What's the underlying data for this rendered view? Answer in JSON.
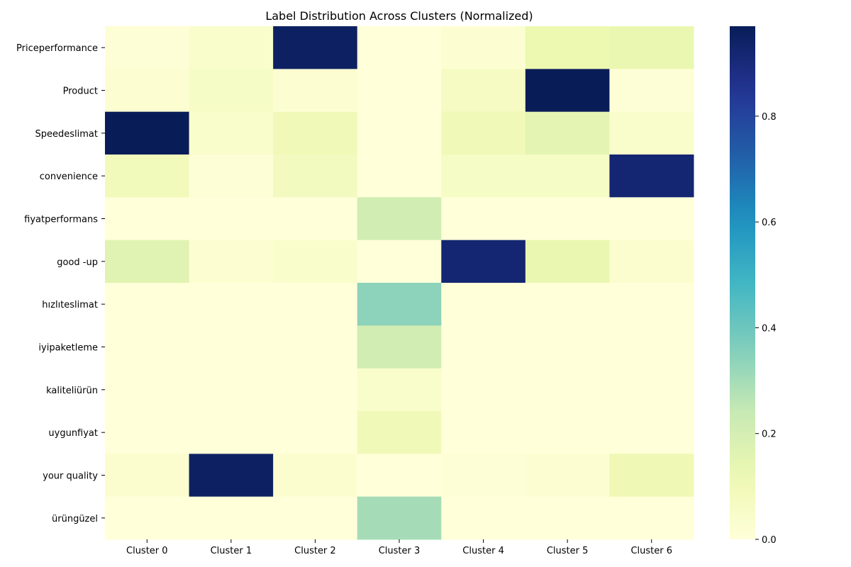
{
  "chart_data": {
    "type": "heatmap",
    "title": "Label Distribution Across Clusters (Normalized)",
    "xlabel": "",
    "ylabel": "",
    "columns": [
      "Cluster 0",
      "Cluster 1",
      "Cluster 2",
      "Cluster 3",
      "Cluster 4",
      "Cluster 5",
      "Cluster 6"
    ],
    "rows": [
      "Priceperformance",
      "Product",
      "Speedeslimat",
      "convenience",
      "fiyatperformans",
      "good -up",
      "hızlıteslimat",
      "iyipaketleme",
      "kaliteliürün",
      "uygunfiyat",
      "your quality",
      "ürüngüzel"
    ],
    "values": [
      [
        0.01,
        0.04,
        0.95,
        0.0,
        0.02,
        0.12,
        0.13
      ],
      [
        0.02,
        0.06,
        0.02,
        0.0,
        0.07,
        0.97,
        0.01
      ],
      [
        0.98,
        0.04,
        0.1,
        0.0,
        0.1,
        0.15,
        0.04
      ],
      [
        0.09,
        0.01,
        0.08,
        0.0,
        0.06,
        0.06,
        0.92
      ],
      [
        0.0,
        0.0,
        0.0,
        0.21,
        0.0,
        0.0,
        0.0
      ],
      [
        0.16,
        0.02,
        0.04,
        0.0,
        0.92,
        0.13,
        0.03
      ],
      [
        0.0,
        0.0,
        0.0,
        0.34,
        0.0,
        0.0,
        0.0
      ],
      [
        0.0,
        0.0,
        0.0,
        0.21,
        0.0,
        0.0,
        0.0
      ],
      [
        0.0,
        0.0,
        0.0,
        0.04,
        0.0,
        0.0,
        0.0
      ],
      [
        0.0,
        0.0,
        0.0,
        0.1,
        0.0,
        0.0,
        0.0
      ],
      [
        0.03,
        0.95,
        0.03,
        0.0,
        0.01,
        0.02,
        0.11
      ],
      [
        0.0,
        0.0,
        0.0,
        0.3,
        0.0,
        0.0,
        0.0
      ]
    ],
    "colormap": "YlGnBu",
    "colorbar": {
      "range": [
        0,
        0.97
      ],
      "ticks": [
        "0.0",
        "0.2",
        "0.4",
        "0.6",
        "0.8"
      ],
      "tick_values": [
        0,
        0.2,
        0.4,
        0.6,
        0.8
      ]
    },
    "grid": false,
    "legend": "colorbar-right"
  }
}
